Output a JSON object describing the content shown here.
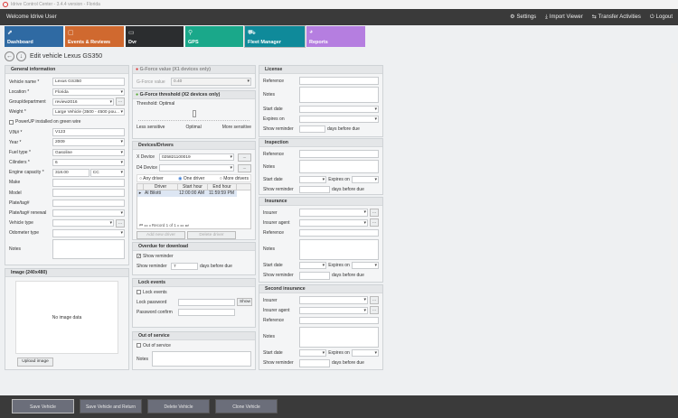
{
  "window": {
    "title": "Idrive Control Center - 3.4.4 version - Florida"
  },
  "header": {
    "welcome": "Welcome Idrive User",
    "settings": "Settings",
    "import_viewer": "Import Viewer",
    "transfer": "Transfer Activities",
    "logout": "Logout"
  },
  "tiles": [
    {
      "label": "Dashboard",
      "color": "#2f6aa3"
    },
    {
      "label": "Events & Reviews",
      "color": "#d0692f"
    },
    {
      "label": "Dvr",
      "color": "#2b2d2f"
    },
    {
      "label": "GPS",
      "color": "#1aa88a"
    },
    {
      "label": "Fleet Manager",
      "color": "#0f8a9a"
    },
    {
      "label": "Reports",
      "color": "#b57ee0"
    }
  ],
  "page": {
    "title": "Edit vehicle Lexus GS350"
  },
  "general": {
    "title": "General information",
    "vehicle_name_l": "Vehicle name *",
    "vehicle_name": "Lexus GS350",
    "location_l": "Location *",
    "location": "Florida",
    "group_l": "Group/department",
    "group": "review2016",
    "weight_l": "Weight *",
    "weight": "Large Vehicle (3500 - 4500 pou...",
    "powerup": "PowerUP installed on green wire",
    "vin_l": "VIN# *",
    "vin": "V123",
    "year_l": "Year *",
    "year": "2009",
    "fuel_l": "Fuel type *",
    "fuel": "Gasoline",
    "cyl_l": "Cilinders *",
    "cyl": "6",
    "engine_l": "Engine capacity *",
    "engine": "318.00",
    "engine_unit": "CC",
    "make_l": "Make",
    "model_l": "Model",
    "plate_l": "Plate/tag#",
    "plate_renewal_l": "Plate/tag# renewal",
    "vehicle_type_l": "Vehicle type",
    "odometer_l": "Odometer type",
    "notes_l": "Notes",
    "dots": "..."
  },
  "image": {
    "title": "Image (240x480)",
    "no_data": "No image data",
    "upload": "Upload image"
  },
  "gforce": {
    "title": "G-Force value (X1 devices only)",
    "label": "G-Force value",
    "value": "0.40"
  },
  "threshold": {
    "title": "G-Force threshold (X2 devices only)",
    "label": "Threshold: Optimal",
    "less": "Less sensitive",
    "optimal": "Optimal",
    "more": "More sensitive",
    "level": 0.5
  },
  "devices": {
    "title": "Devices/Drivers",
    "x_l": "X Device",
    "x": "025821100019",
    "d4_l": "D4 Device",
    "any": "Any driver",
    "one": "One driver",
    "more": "More drivers",
    "cols": [
      "Driver",
      "Start hour",
      "End hour"
    ],
    "rows": [
      [
        "Al Bilotti",
        "12:00:00 AM",
        "11:59:59 PM"
      ]
    ],
    "record": "Record 1 of 1",
    "add": "Add new driver",
    "delete": "Delete driver"
  },
  "overdue": {
    "title": "Overdue for download",
    "show": "Show reminder",
    "show_l": "Show reminder",
    "days": "7",
    "suffix": "days before due"
  },
  "lock": {
    "title": "Lock events",
    "lock": "Lock events",
    "pw_l": "Lock password",
    "show": "Show",
    "confirm_l": "Password confirm"
  },
  "oos": {
    "title": "Out of service",
    "chk": "Out of service",
    "notes_l": "Notes"
  },
  "license": {
    "title": "License",
    "ref": "Reference",
    "notes": "Notes",
    "start": "Start date",
    "expires": "Expires on",
    "show": "Show reminder",
    "suffix": "days before due"
  },
  "inspection": {
    "title": "Inspection",
    "ref": "Reference",
    "notes": "Notes",
    "start": "Start date",
    "expires": "Expires on",
    "show": "Show reminder",
    "suffix": "days before due"
  },
  "insurance": {
    "title": "Insurance",
    "insurer": "Insurer",
    "agent": "Insurer agent",
    "ref": "Reference",
    "notes": "Notes",
    "start": "Start date",
    "expires": "Expires on",
    "show": "Show reminder",
    "suffix": "days before due"
  },
  "insurance2": {
    "title": "Second insurance",
    "insurer": "Insurer",
    "agent": "Insurer agent",
    "ref": "Reference",
    "notes": "Notes",
    "start": "Start date",
    "expires": "Expires on",
    "show": "Show reminder",
    "suffix": "days before due"
  },
  "footer": {
    "save": "Save Vehicle",
    "save_return": "Save Vehicle and Return",
    "delete": "Delete Vehicle",
    "clone": "Clone Vehicle"
  }
}
